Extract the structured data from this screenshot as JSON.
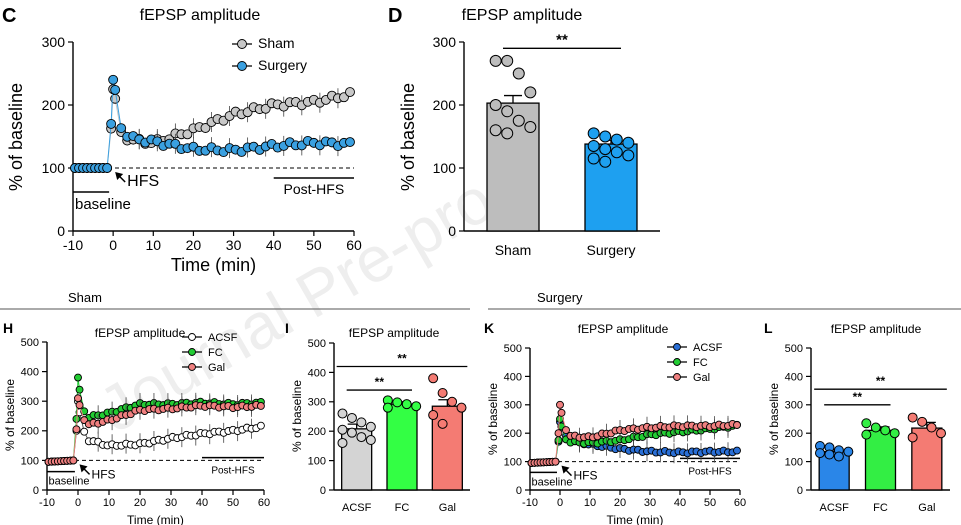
{
  "figure": {
    "group_labels": {
      "sham": "Sham",
      "surgery": "Surgery"
    },
    "watermark": "Journal Pre-proof"
  },
  "chart_data": [
    {
      "id": "C",
      "panel_label": "C",
      "type": "line",
      "title": "fEPSP amplitude",
      "xlabel": "Time (min)",
      "ylabel": "% of baseline",
      "xlim": [
        -10,
        60
      ],
      "ylim": [
        0,
        300
      ],
      "xticks": [
        -10,
        0,
        10,
        20,
        30,
        40,
        50,
        60
      ],
      "yticks": [
        0,
        100,
        200,
        300
      ],
      "baseline_label": "baseline",
      "hfs_label": "HFS",
      "post_label": "Post-HFS",
      "series": [
        {
          "name": "Sham",
          "color": "#c8c8c8",
          "anchors": [
            [
              -10,
              100
            ],
            [
              -1,
              100
            ],
            [
              0,
              225
            ],
            [
              1,
              190
            ],
            [
              2,
              155
            ],
            [
              4,
              145
            ],
            [
              10,
              140
            ],
            [
              20,
              160
            ],
            [
              30,
              185
            ],
            [
              40,
              200
            ],
            [
              50,
              205
            ],
            [
              60,
              218
            ]
          ]
        },
        {
          "name": "Surgery",
          "color": "#3aa0e0",
          "anchors": [
            [
              -10,
              100
            ],
            [
              -1,
              100
            ],
            [
              0,
              240
            ],
            [
              1,
              200
            ],
            [
              2,
              165
            ],
            [
              4,
              148
            ],
            [
              10,
              142
            ],
            [
              20,
              130
            ],
            [
              30,
              128
            ],
            [
              40,
              135
            ],
            [
              50,
              140
            ],
            [
              60,
              138
            ]
          ]
        }
      ]
    },
    {
      "id": "D",
      "panel_label": "D",
      "type": "bar",
      "title": "fEPSP amplitude",
      "ylabel": "% of baseline",
      "ylim": [
        0,
        300
      ],
      "yticks": [
        0,
        100,
        200,
        300
      ],
      "categories": [
        "Sham",
        "Surgery"
      ],
      "values": [
        203,
        138
      ],
      "errors": [
        12,
        6
      ],
      "colors": [
        "#bdbdbd",
        "#1ea0f0"
      ],
      "points": [
        [
          270,
          270,
          250,
          220,
          200,
          190,
          175,
          165,
          160,
          155
        ],
        [
          155,
          150,
          145,
          140,
          135,
          130,
          125,
          120,
          115,
          110
        ]
      ],
      "sig": [
        {
          "from": 0,
          "to": 1,
          "y": 290,
          "label": "**"
        }
      ]
    },
    {
      "id": "H",
      "panel_label": "H",
      "type": "line",
      "title": "fEPSP amplitude",
      "xlabel": "Time (min)",
      "ylabel": "% of baseline",
      "xlim": [
        -10,
        60
      ],
      "ylim": [
        0,
        500
      ],
      "xticks": [
        -10,
        0,
        10,
        20,
        30,
        40,
        50,
        60
      ],
      "yticks": [
        0,
        100,
        200,
        300,
        400,
        500
      ],
      "baseline_label": "baseline",
      "hfs_label": "HFS",
      "post_label": "Post-HFS",
      "series": [
        {
          "name": "ACSF",
          "color": "#ffffff",
          "anchors": [
            [
              -10,
              95
            ],
            [
              -1,
              100
            ],
            [
              0,
              300
            ],
            [
              1,
              220
            ],
            [
              3,
              170
            ],
            [
              10,
              150
            ],
            [
              20,
              155
            ],
            [
              30,
              175
            ],
            [
              40,
              190
            ],
            [
              50,
              200
            ],
            [
              60,
              215
            ]
          ]
        },
        {
          "name": "FC",
          "color": "#22cc33",
          "anchors": [
            [
              -10,
              95
            ],
            [
              -1,
              100
            ],
            [
              0,
              380
            ],
            [
              1,
              290
            ],
            [
              3,
              245
            ],
            [
              10,
              260
            ],
            [
              20,
              290
            ],
            [
              30,
              290
            ],
            [
              40,
              295
            ],
            [
              50,
              290
            ],
            [
              60,
              295
            ]
          ]
        },
        {
          "name": "Gal",
          "color": "#f08080",
          "anchors": [
            [
              -10,
              95
            ],
            [
              -1,
              100
            ],
            [
              0,
              310
            ],
            [
              1,
              260
            ],
            [
              3,
              220
            ],
            [
              10,
              235
            ],
            [
              20,
              270
            ],
            [
              30,
              275
            ],
            [
              40,
              285
            ],
            [
              50,
              280
            ],
            [
              60,
              285
            ]
          ]
        }
      ]
    },
    {
      "id": "I",
      "panel_label": "I",
      "type": "bar",
      "title": "fEPSP amplitude",
      "ylabel": "% of baseline",
      "ylim": [
        0,
        500
      ],
      "yticks": [
        0,
        100,
        200,
        300,
        400,
        500
      ],
      "categories": [
        "ACSF",
        "FC",
        "Gal"
      ],
      "values": [
        208,
        292,
        285
      ],
      "errors": [
        16,
        8,
        22
      ],
      "colors": [
        "#d4d4d4",
        "#33ff44",
        "#f47b73"
      ],
      "points": [
        [
          260,
          245,
          230,
          215,
          205,
          195,
          180,
          170,
          160
        ],
        [
          305,
          298,
          292,
          285,
          280
        ],
        [
          380,
          330,
          300,
          280,
          255,
          225
        ]
      ],
      "sig": [
        {
          "from": 0,
          "to": 1,
          "y": 340,
          "label": "**"
        },
        {
          "from": 0,
          "to": 2,
          "y": 420,
          "label": "**"
        }
      ]
    },
    {
      "id": "K",
      "panel_label": "K",
      "type": "line",
      "title": "fEPSP amplitude",
      "xlabel": "Time (min)",
      "ylabel": "% of baseline",
      "xlim": [
        -10,
        60
      ],
      "ylim": [
        0,
        500
      ],
      "xticks": [
        -10,
        0,
        10,
        20,
        30,
        40,
        50,
        60
      ],
      "yticks": [
        0,
        100,
        200,
        300,
        400,
        500
      ],
      "baseline_label": "baseline",
      "hfs_label": "HFS",
      "post_label": "Post-HFS",
      "series": [
        {
          "name": "ACSF",
          "color": "#2a6fd6",
          "anchors": [
            [
              -10,
              95
            ],
            [
              -1,
              100
            ],
            [
              0,
              240
            ],
            [
              1,
              200
            ],
            [
              3,
              175
            ],
            [
              10,
              160
            ],
            [
              20,
              145
            ],
            [
              30,
              135
            ],
            [
              40,
              132
            ],
            [
              50,
              135
            ],
            [
              60,
              135
            ]
          ]
        },
        {
          "name": "FC",
          "color": "#22cc33",
          "anchors": [
            [
              -10,
              95
            ],
            [
              -1,
              100
            ],
            [
              0,
              250
            ],
            [
              1,
              190
            ],
            [
              3,
              170
            ],
            [
              10,
              165
            ],
            [
              20,
              175
            ],
            [
              30,
              195
            ],
            [
              40,
              205
            ],
            [
              50,
              215
            ],
            [
              60,
              228
            ]
          ]
        },
        {
          "name": "Gal",
          "color": "#f08080",
          "anchors": [
            [
              -10,
              95
            ],
            [
              -1,
              100
            ],
            [
              0,
              300
            ],
            [
              1,
              240
            ],
            [
              3,
              190
            ],
            [
              10,
              185
            ],
            [
              20,
              210
            ],
            [
              30,
              220
            ],
            [
              40,
              225
            ],
            [
              50,
              225
            ],
            [
              60,
              230
            ]
          ]
        }
      ]
    },
    {
      "id": "L",
      "panel_label": "L",
      "type": "bar",
      "title": "fEPSP amplitude",
      "ylabel": "% of baseline",
      "ylim": [
        0,
        500
      ],
      "yticks": [
        0,
        100,
        200,
        300,
        400,
        500
      ],
      "categories": [
        "ACSF",
        "FC",
        "Gal"
      ],
      "values": [
        135,
        210,
        218
      ],
      "errors": [
        8,
        12,
        20
      ],
      "colors": [
        "#2a86e8",
        "#33ee44",
        "#f47b73"
      ],
      "points": [
        [
          155,
          150,
          140,
          135,
          130,
          125,
          118
        ],
        [
          235,
          220,
          210,
          200,
          195
        ],
        [
          255,
          240,
          220,
          200,
          185
        ]
      ],
      "sig": [
        {
          "from": 0,
          "to": 1,
          "y": 300,
          "label": "**"
        },
        {
          "from": 0,
          "to": 2,
          "y": 355,
          "label": "**"
        }
      ]
    }
  ]
}
